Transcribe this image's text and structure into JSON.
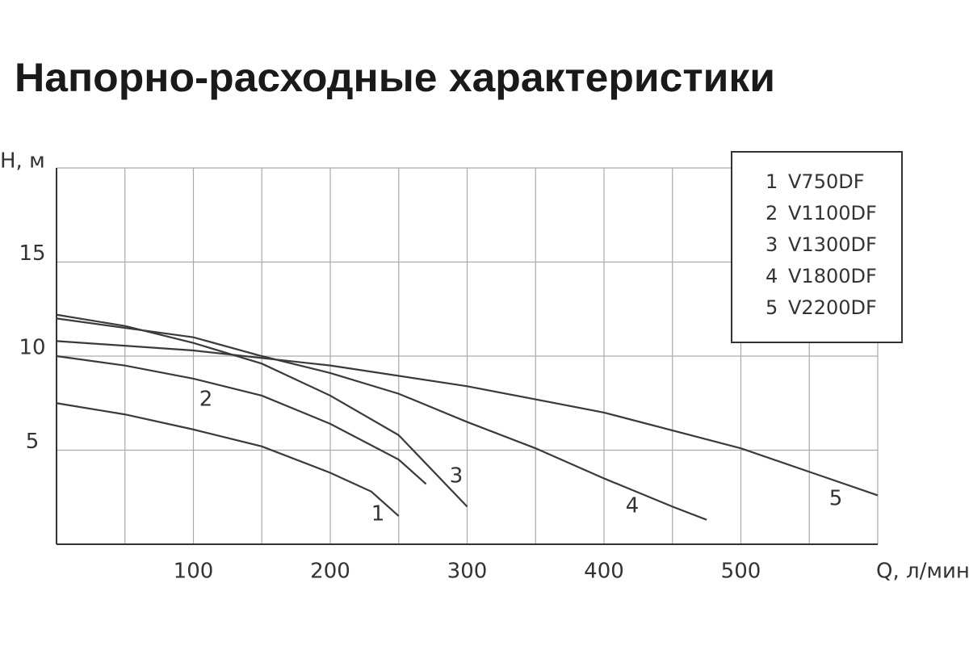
{
  "chart_data": {
    "type": "line",
    "title": "Напорно-расходные характеристики",
    "y_label": "H, м",
    "x_label": "Q, л/мин",
    "xlim": [
      0,
      600
    ],
    "ylim": [
      0,
      20
    ],
    "xticks": [
      100,
      200,
      300,
      400,
      500
    ],
    "minor_xticks": [
      50,
      150,
      250,
      350,
      450,
      550,
      600
    ],
    "yticks": [
      5,
      10,
      15
    ],
    "minor_yticks": [
      20
    ],
    "grid": true,
    "series": [
      {
        "number": "1",
        "name": "V750DF",
        "color": "#3a3a3a",
        "x": [
          0,
          50,
          100,
          150,
          200,
          230,
          250
        ],
        "values": [
          7.5,
          6.9,
          6.1,
          5.2,
          3.8,
          2.8,
          1.5
        ]
      },
      {
        "number": "2",
        "name": "V1100DF",
        "color": "#3a3a3a",
        "x": [
          0,
          50,
          100,
          150,
          200,
          250,
          270
        ],
        "values": [
          10.0,
          9.5,
          8.8,
          7.9,
          6.4,
          4.5,
          3.2
        ]
      },
      {
        "number": "3",
        "name": "V1300DF",
        "color": "#3a3a3a",
        "x": [
          0,
          50,
          100,
          150,
          200,
          250,
          300
        ],
        "values": [
          12.2,
          11.6,
          10.7,
          9.6,
          7.9,
          5.8,
          2.0
        ]
      },
      {
        "number": "4",
        "name": "V1800DF",
        "color": "#3a3a3a",
        "x": [
          0,
          100,
          150,
          200,
          250,
          300,
          350,
          400,
          450,
          475
        ],
        "values": [
          12.0,
          11.0,
          10.0,
          9.1,
          8.0,
          6.5,
          5.1,
          3.5,
          2.0,
          1.3
        ]
      },
      {
        "number": "5",
        "name": "V2200DF",
        "color": "#3a3a3a",
        "x": [
          0,
          100,
          200,
          300,
          400,
          500,
          600
        ],
        "values": [
          10.8,
          10.3,
          9.5,
          8.4,
          7.0,
          5.1,
          2.6
        ]
      }
    ]
  }
}
